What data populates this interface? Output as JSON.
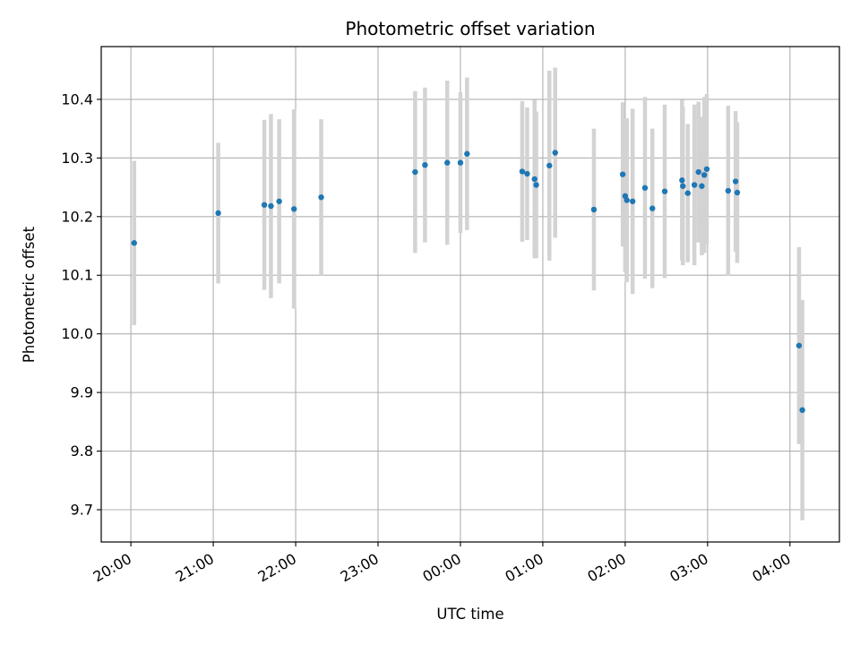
{
  "chart_data": {
    "type": "scatter",
    "title": "Photometric offset variation",
    "xlabel": "UTC time",
    "ylabel": "Photometric offset",
    "x_unit": "hours",
    "x_tick_values": [
      20,
      21,
      22,
      23,
      24,
      25,
      26,
      27,
      28
    ],
    "x_tick_labels": [
      "20:00",
      "21:00",
      "22:00",
      "23:00",
      "00:00",
      "01:00",
      "02:00",
      "03:00",
      "04:00"
    ],
    "xlim": [
      19.64,
      28.6
    ],
    "ylim": [
      9.645,
      10.49
    ],
    "y_ticks": [
      "9.7",
      "9.8",
      "9.9",
      "10.0",
      "10.1",
      "10.2",
      "10.3",
      "10.4"
    ],
    "grid": true,
    "colors": {
      "marker": "#1f77b4",
      "errorbar": "#d3d3d3",
      "grid": "#b0b0b0"
    },
    "points": [
      {
        "x": 20.04,
        "y": 10.155,
        "err": 0.14
      },
      {
        "x": 21.06,
        "y": 10.206,
        "err": 0.12
      },
      {
        "x": 21.62,
        "y": 10.22,
        "err": 0.145
      },
      {
        "x": 21.7,
        "y": 10.218,
        "err": 0.157
      },
      {
        "x": 21.8,
        "y": 10.226,
        "err": 0.14
      },
      {
        "x": 21.98,
        "y": 10.213,
        "err": 0.17
      },
      {
        "x": 22.31,
        "y": 10.233,
        "err": 0.133
      },
      {
        "x": 23.45,
        "y": 10.276,
        "err": 0.138
      },
      {
        "x": 23.57,
        "y": 10.288,
        "err": 0.132
      },
      {
        "x": 23.84,
        "y": 10.292,
        "err": 0.14
      },
      {
        "x": 24.0,
        "y": 10.292,
        "err": 0.12
      },
      {
        "x": 24.08,
        "y": 10.307,
        "err": 0.13
      },
      {
        "x": 24.75,
        "y": 10.277,
        "err": 0.12
      },
      {
        "x": 24.81,
        "y": 10.273,
        "err": 0.113
      },
      {
        "x": 24.9,
        "y": 10.264,
        "err": 0.135
      },
      {
        "x": 24.92,
        "y": 10.254,
        "err": 0.125
      },
      {
        "x": 25.08,
        "y": 10.287,
        "err": 0.162
      },
      {
        "x": 25.15,
        "y": 10.309,
        "err": 0.145
      },
      {
        "x": 25.62,
        "y": 10.212,
        "err": 0.138
      },
      {
        "x": 25.97,
        "y": 10.272,
        "err": 0.123
      },
      {
        "x": 26.0,
        "y": 10.235,
        "err": 0.13
      },
      {
        "x": 26.02,
        "y": 10.228,
        "err": 0.14
      },
      {
        "x": 26.09,
        "y": 10.226,
        "err": 0.158
      },
      {
        "x": 26.24,
        "y": 10.249,
        "err": 0.155
      },
      {
        "x": 26.33,
        "y": 10.214,
        "err": 0.136
      },
      {
        "x": 26.48,
        "y": 10.243,
        "err": 0.148
      },
      {
        "x": 26.69,
        "y": 10.262,
        "err": 0.137
      },
      {
        "x": 26.7,
        "y": 10.252,
        "err": 0.135
      },
      {
        "x": 26.76,
        "y": 10.24,
        "err": 0.118
      },
      {
        "x": 26.84,
        "y": 10.254,
        "err": 0.137
      },
      {
        "x": 26.89,
        "y": 10.276,
        "err": 0.12
      },
      {
        "x": 26.93,
        "y": 10.252,
        "err": 0.118
      },
      {
        "x": 26.96,
        "y": 10.271,
        "err": 0.133
      },
      {
        "x": 26.99,
        "y": 10.281,
        "err": 0.128
      },
      {
        "x": 27.25,
        "y": 10.244,
        "err": 0.145
      },
      {
        "x": 27.34,
        "y": 10.26,
        "err": 0.12
      },
      {
        "x": 27.36,
        "y": 10.241,
        "err": 0.12
      },
      {
        "x": 28.11,
        "y": 9.98,
        "err": 0.168
      },
      {
        "x": 28.15,
        "y": 9.87,
        "err": 0.188
      }
    ]
  }
}
